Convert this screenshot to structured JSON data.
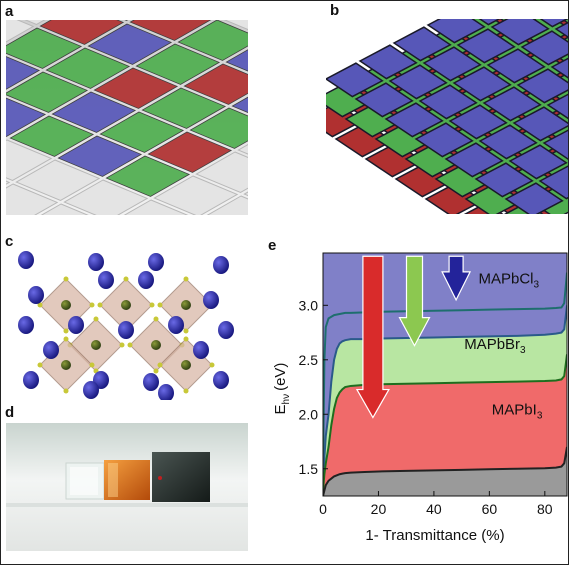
{
  "panels": {
    "a": "a",
    "b": "b",
    "c": "c",
    "d": "d",
    "e": "e"
  },
  "colors": {
    "red": "#b03030",
    "green": "#4fae4f",
    "blue": "#5757b8",
    "cl_fill": "#8080c8",
    "br_fill": "#b8e6a2",
    "i_fill": "#f06a6a",
    "gray_fill": "#9a9a9a",
    "arrow_red": "#d92b2b",
    "arrow_green": "#8cc850",
    "arrow_blue": "#23239a"
  },
  "chart_data": {
    "type": "area",
    "xlabel": "1- Transmittance (%)",
    "ylabel": "E",
    "ylabel_sub": "hν",
    "ylabel_unit": "(eV)",
    "xlim": [
      0,
      88
    ],
    "ylim": [
      1.25,
      3.48
    ],
    "xticks": [
      0,
      20,
      40,
      60,
      80
    ],
    "xtick_labels": [
      "0",
      "20",
      "40",
      "60",
      "80"
    ],
    "yticks": [
      1.5,
      2.0,
      2.5,
      3.0
    ],
    "ytick_labels": [
      "1.5",
      "2.0",
      "2.5",
      "3.0"
    ],
    "series": [
      {
        "name": "MAPbCl",
        "subscript": "3",
        "color": "#8080c8",
        "line": "#1e6e6e",
        "x": [
          0,
          0.5,
          1,
          2,
          4,
          6,
          8,
          10,
          15,
          20,
          30,
          40,
          50,
          60,
          70,
          80,
          84,
          86,
          87,
          88
        ],
        "y": [
          1.5,
          2.5,
          2.8,
          2.88,
          2.91,
          2.92,
          2.93,
          2.93,
          2.935,
          2.94,
          2.945,
          2.95,
          2.955,
          2.96,
          2.965,
          2.97,
          2.975,
          2.98,
          3.02,
          3.3
        ]
      },
      {
        "name": "MAPbBr",
        "subscript": "3",
        "color": "#b8e6a2",
        "line": "#2a5a8a",
        "x": [
          0,
          0.5,
          1,
          2,
          3,
          4,
          5,
          6,
          7,
          8,
          10,
          15,
          20,
          30,
          40,
          50,
          60,
          70,
          80,
          84,
          86,
          87,
          88
        ],
        "y": [
          1.4,
          1.6,
          1.8,
          2.0,
          2.3,
          2.5,
          2.6,
          2.65,
          2.67,
          2.68,
          2.69,
          2.69,
          2.695,
          2.7,
          2.705,
          2.71,
          2.715,
          2.72,
          2.73,
          2.74,
          2.75,
          2.78,
          3.0
        ]
      },
      {
        "name": "MAPbI",
        "subscript": "3",
        "color": "#f06a6a",
        "line": "#1e6e1e",
        "x": [
          0,
          0.5,
          1,
          2,
          3,
          4,
          5,
          6,
          7,
          8,
          10,
          15,
          20,
          30,
          40,
          50,
          60,
          70,
          80,
          84,
          86,
          87,
          88
        ],
        "y": [
          1.3,
          1.45,
          1.55,
          1.7,
          1.9,
          2.05,
          2.15,
          2.2,
          2.23,
          2.25,
          2.26,
          2.27,
          2.275,
          2.28,
          2.285,
          2.29,
          2.295,
          2.3,
          2.305,
          2.31,
          2.32,
          2.35,
          2.55
        ]
      },
      {
        "name": "",
        "color": "#9a9a9a",
        "line": "#222222",
        "x": [
          0,
          0.5,
          1,
          2,
          3,
          4,
          5,
          6,
          7,
          8,
          10,
          15,
          20,
          30,
          40,
          50,
          60,
          70,
          80,
          84,
          86,
          87,
          88
        ],
        "y": [
          1.25,
          1.3,
          1.35,
          1.39,
          1.41,
          1.43,
          1.44,
          1.45,
          1.455,
          1.46,
          1.465,
          1.47,
          1.475,
          1.48,
          1.485,
          1.49,
          1.495,
          1.5,
          1.505,
          1.51,
          1.52,
          1.55,
          1.7
        ]
      }
    ]
  }
}
